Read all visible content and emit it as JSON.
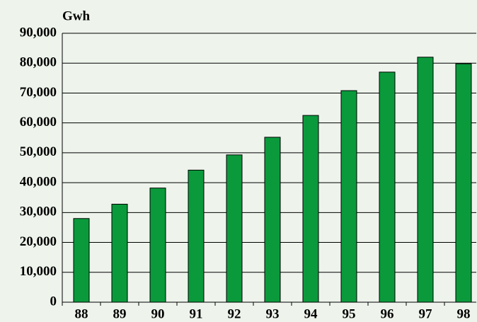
{
  "chart_data": {
    "type": "bar",
    "y_label": "Gwh",
    "categories": [
      "88",
      "89",
      "90",
      "91",
      "92",
      "93",
      "94",
      "95",
      "96",
      "97",
      "98"
    ],
    "values": [
      28000,
      32800,
      38200,
      44200,
      49300,
      55200,
      62500,
      70800,
      77000,
      82000,
      79800
    ],
    "color": "#0a9a3c",
    "ylim": [
      0,
      90000
    ],
    "yticks": [
      0,
      {
        "value": 10000,
        "label": "10,000"
      },
      {
        "value": 20000,
        "label": "20,000"
      },
      {
        "value": 30000,
        "label": "30,000"
      },
      {
        "value": 40000,
        "label": "40,000"
      },
      {
        "value": 50000,
        "label": "50,000"
      },
      {
        "value": 60000,
        "label": "60,000"
      },
      {
        "value": 70000,
        "label": "70,000"
      },
      {
        "value": 80000,
        "label": "80,000"
      },
      {
        "value": 90000,
        "label": "90,000"
      }
    ],
    "grid": true
  }
}
